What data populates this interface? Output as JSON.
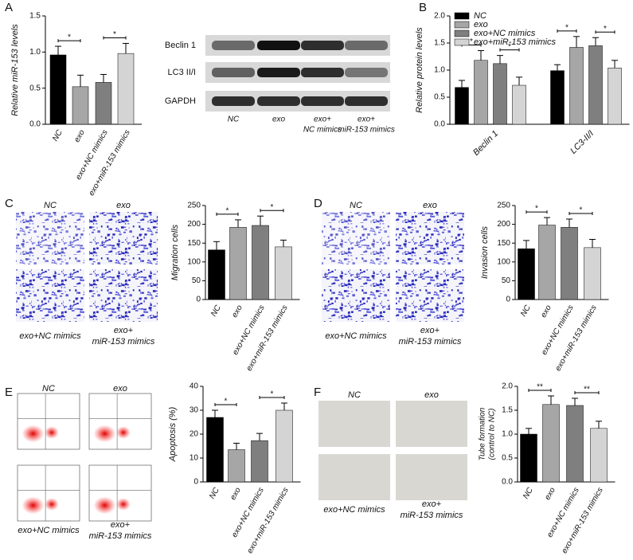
{
  "chart_data": [
    {
      "type": "bar",
      "panel": "A",
      "ylabel": "Relative miR-153 levels",
      "categories": [
        "NC",
        "exo",
        "exo+NC mimics",
        "exo+miR-153 mimics"
      ],
      "values": [
        0.96,
        0.52,
        0.58,
        0.98
      ],
      "errors": [
        0.12,
        0.16,
        0.11,
        0.14
      ],
      "colors": [
        "#000000",
        "#a6a6a6",
        "#7f7f7f",
        "#d4d4d4"
      ],
      "ylim": [
        0,
        1.5
      ],
      "yticks": [
        {
          "value": 0,
          "label": "0.0"
        },
        {
          "value": 0.5,
          "label": "0.5"
        },
        {
          "value": 1,
          "label": "1.0"
        },
        {
          "value": 1.5,
          "label": "1.5"
        }
      ],
      "significance": [
        {
          "pair": [
            0,
            1
          ],
          "label": "*"
        },
        {
          "pair": [
            2,
            3
          ],
          "label": "*"
        }
      ]
    },
    {
      "type": "grouped_bar",
      "panel": "B",
      "ylabel": "Relative protein levels",
      "categories": [
        "Beclin 1",
        "LC3-II/I"
      ],
      "series": [
        {
          "name": "NC",
          "color": "#000000",
          "values": [
            0.68,
            0.99
          ],
          "errors": [
            0.13,
            0.11
          ]
        },
        {
          "name": "exo",
          "color": "#a6a6a6",
          "values": [
            1.18,
            1.42
          ],
          "errors": [
            0.18,
            0.2
          ]
        },
        {
          "name": "exo+NC mimics",
          "color": "#7f7f7f",
          "values": [
            1.12,
            1.45
          ],
          "errors": [
            0.15,
            0.15
          ]
        },
        {
          "name": "exo+miR-153 mimics",
          "color": "#d4d4d4",
          "values": [
            0.72,
            1.04
          ],
          "errors": [
            0.15,
            0.14
          ]
        }
      ],
      "legend": "upper left",
      "ylim": [
        0,
        2
      ],
      "yticks": [
        {
          "value": 0,
          "label": "0.0"
        },
        {
          "value": 0.5,
          "label": "0.5"
        },
        {
          "value": 1,
          "label": "1.0"
        },
        {
          "value": 1.5,
          "label": "1.5"
        },
        {
          "value": 2,
          "label": "2.0"
        }
      ],
      "significance": [
        {
          "category": 0,
          "pair": [
            0,
            1
          ],
          "label": "*"
        },
        {
          "category": 0,
          "pair": [
            2,
            3
          ],
          "label": "*"
        },
        {
          "category": 1,
          "pair": [
            0,
            1
          ],
          "label": "*"
        },
        {
          "category": 1,
          "pair": [
            2,
            3
          ],
          "label": "*"
        }
      ]
    },
    {
      "type": "bar",
      "panel": "C",
      "ylabel": "Migration cells",
      "categories": [
        "NC",
        "exo",
        "exo+NC mimics",
        "exo+miR-153 mimics"
      ],
      "values": [
        132,
        192,
        197,
        140
      ],
      "errors": [
        22,
        20,
        25,
        18
      ],
      "colors": [
        "#000000",
        "#a6a6a6",
        "#7f7f7f",
        "#d4d4d4"
      ],
      "ylim": [
        0,
        250
      ],
      "yticks": [
        0,
        50,
        100,
        150,
        200,
        250
      ],
      "significance": [
        {
          "pair": [
            0,
            1
          ],
          "label": "*"
        },
        {
          "pair": [
            2,
            3
          ],
          "label": "*"
        }
      ]
    },
    {
      "type": "bar",
      "panel": "D",
      "ylabel": "Invasion cells",
      "categories": [
        "NC",
        "exo",
        "exo+NC mimics",
        "exo+miR-153 mimics"
      ],
      "values": [
        135,
        198,
        192,
        138
      ],
      "errors": [
        22,
        20,
        22,
        22
      ],
      "colors": [
        "#000000",
        "#a6a6a6",
        "#7f7f7f",
        "#d4d4d4"
      ],
      "ylim": [
        0,
        250
      ],
      "yticks": [
        0,
        50,
        100,
        150,
        200,
        250
      ],
      "significance": [
        {
          "pair": [
            0,
            1
          ],
          "label": "*"
        },
        {
          "pair": [
            2,
            3
          ],
          "label": "*"
        }
      ]
    },
    {
      "type": "bar",
      "panel": "E",
      "ylabel": "Apoptosis (%)",
      "categories": [
        "NC",
        "exo",
        "exo+NC mimics",
        "exo+miR-153 mimics"
      ],
      "values": [
        27,
        13.5,
        17.3,
        30
      ],
      "errors": [
        3,
        2.7,
        3,
        3
      ],
      "colors": [
        "#000000",
        "#a6a6a6",
        "#7f7f7f",
        "#d4d4d4"
      ],
      "ylim": [
        0,
        40
      ],
      "yticks": [
        0,
        10,
        20,
        30,
        40
      ],
      "significance": [
        {
          "pair": [
            0,
            1
          ],
          "label": "*"
        },
        {
          "pair": [
            2,
            3
          ],
          "label": "*"
        }
      ]
    },
    {
      "type": "bar",
      "panel": "F",
      "ylabel": [
        "Tube formation",
        "(control to NC)"
      ],
      "categories": [
        "NC",
        "exo",
        "exo+NC mimics",
        "exo+miR-153 mimics"
      ],
      "values": [
        1.0,
        1.62,
        1.6,
        1.12
      ],
      "errors": [
        0.12,
        0.18,
        0.15,
        0.15
      ],
      "colors": [
        "#000000",
        "#a6a6a6",
        "#7f7f7f",
        "#d4d4d4"
      ],
      "ylim": [
        0,
        2
      ],
      "yticks": [
        {
          "value": 0,
          "label": "0.0"
        },
        {
          "value": 0.5,
          "label": "0.5"
        },
        {
          "value": 1,
          "label": "1.0"
        },
        {
          "value": 1.5,
          "label": "1.5"
        },
        {
          "value": 2,
          "label": "2.0"
        }
      ],
      "significance": [
        {
          "pair": [
            0,
            1
          ],
          "label": "**"
        },
        {
          "pair": [
            2,
            3
          ],
          "label": "**"
        }
      ]
    }
  ],
  "figure": {
    "blot": {
      "rows": [
        "Beclin 1",
        "LC3 II/I",
        "GAPDH"
      ],
      "lanes": [
        [
          "NC"
        ],
        [
          "exo"
        ],
        [
          "exo+",
          "NC mimics"
        ],
        [
          "exo+",
          "miR-153 mimics"
        ]
      ]
    },
    "image_grids": [
      {
        "kind": "transwell",
        "labels": [
          [
            "NC"
          ],
          [
            "exo"
          ],
          [
            "exo+NC mimics"
          ],
          [
            "exo+",
            "miR-153 mimics"
          ]
        ]
      },
      {
        "kind": "transwell",
        "labels": [
          [
            "NC"
          ],
          [
            "exo"
          ],
          [
            "exo+NC mimics"
          ],
          [
            "exo+",
            "miR-153 mimics"
          ]
        ]
      },
      {
        "kind": "flow",
        "labels": [
          [
            "NC"
          ],
          [
            "exo"
          ],
          [
            "exo+NC mimics"
          ],
          [
            "exo+",
            "miR-153 mimics"
          ]
        ]
      },
      {
        "kind": "tube",
        "labels": [
          [
            "NC"
          ],
          [
            "exo"
          ],
          [
            "exo+NC mimics"
          ],
          [
            "exo+",
            "miR-153 mimics"
          ]
        ]
      }
    ]
  }
}
